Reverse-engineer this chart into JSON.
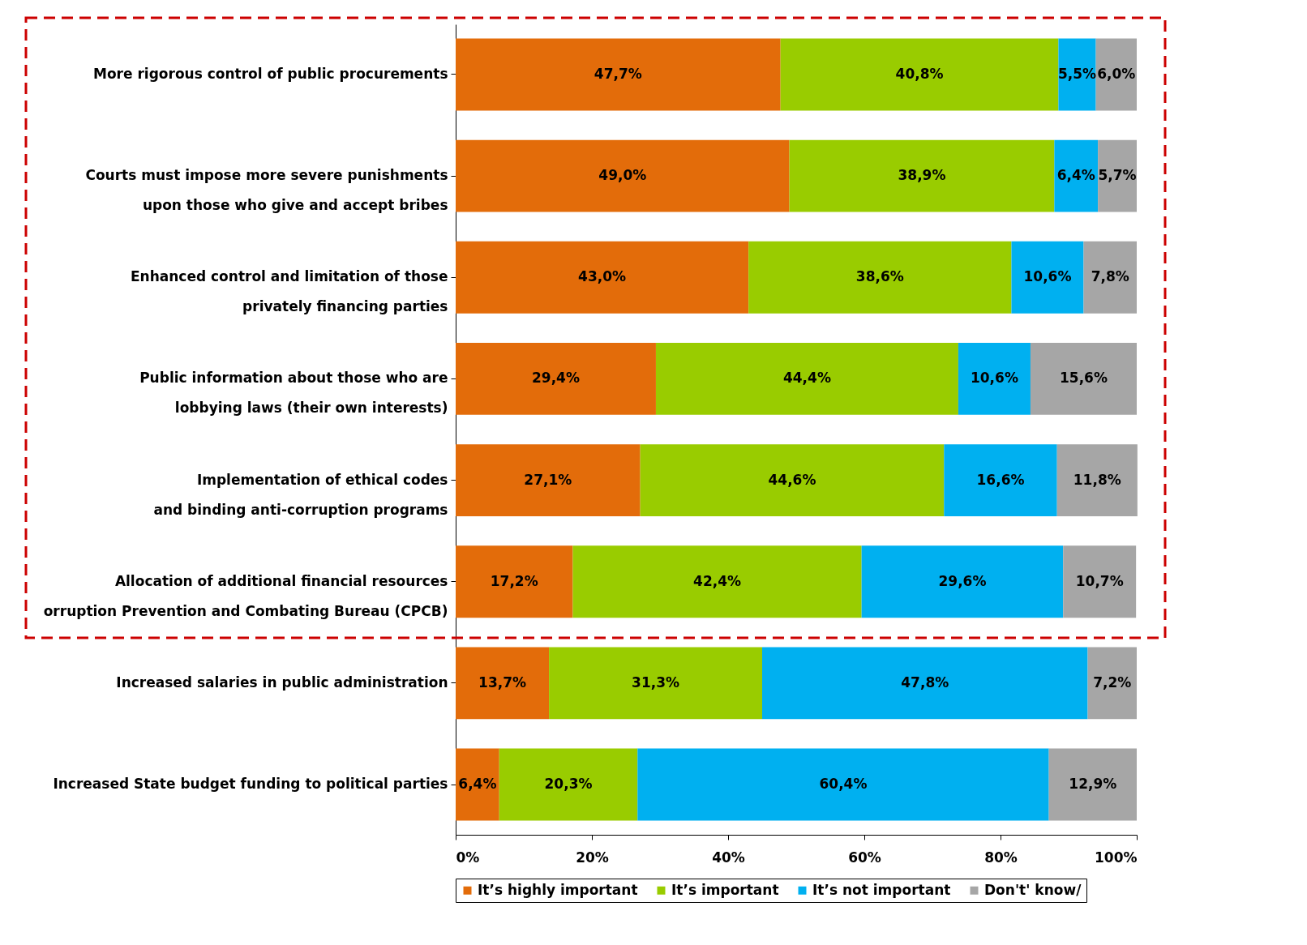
{
  "chart_data": {
    "type": "bar",
    "orientation": "horizontal",
    "stacked": true,
    "categories": [
      "More rigorous control of public procurements",
      "Courts must impose more severe punishments\nupon those who give and accept bribes",
      "Enhanced control and limitation of those\nprivately financing parties",
      "Public information about those who are\nlobbying laws (their own interests)",
      "Implementation of ethical codes\nand binding anti-corruption programs",
      "Allocation of additional financial resources\norruption Prevention and Combating Bureau (CPCB)",
      "Increased salaries in public administration",
      "Increased State budget funding to political parties"
    ],
    "series": [
      {
        "name": "It’s highly important",
        "color": "#e36c0a",
        "values": [
          47.7,
          49.0,
          43.0,
          29.4,
          27.1,
          17.2,
          13.7,
          6.4
        ],
        "value_labels": [
          "47,7%",
          "49,0%",
          "43,0%",
          "29,4%",
          "27,1%",
          "17,2%",
          "13,7%",
          "6,4%"
        ]
      },
      {
        "name": "It’s important",
        "color": "#99cc00",
        "values": [
          40.8,
          38.9,
          38.6,
          44.4,
          44.6,
          42.4,
          31.3,
          20.3
        ],
        "value_labels": [
          "40,8%",
          "38,9%",
          "38,6%",
          "44,4%",
          "44,6%",
          "42,4%",
          "31,3%",
          "20,3%"
        ]
      },
      {
        "name": "It’s not important",
        "color": "#00b0f0",
        "values": [
          5.5,
          6.4,
          10.6,
          10.6,
          16.6,
          29.6,
          47.8,
          60.4
        ],
        "value_labels": [
          "5,5%",
          "6,4%",
          "10,6%",
          "10,6%",
          "16,6%",
          "29,6%",
          "47,8%",
          "60,4%"
        ]
      },
      {
        "name": "Don't' know/",
        "color": "#a6a6a6",
        "values": [
          6.0,
          5.7,
          7.8,
          15.6,
          11.8,
          10.7,
          7.2,
          12.9
        ],
        "value_labels": [
          "6,0%",
          "5,7%",
          "7,8%",
          "15,6%",
          "11,8%",
          "10,7%",
          "7,2%",
          "12,9%"
        ]
      }
    ],
    "xlim": [
      0,
      100
    ],
    "xticks": [
      {
        "value": 0,
        "label": "0%"
      },
      {
        "value": 20,
        "label": "20%"
      },
      {
        "value": 40,
        "label": "40%"
      },
      {
        "value": 60,
        "label": "60%"
      },
      {
        "value": 80,
        "label": "80%"
      },
      {
        "value": 100,
        "label": "100%"
      }
    ],
    "grid": false,
    "legend": "bottom"
  }
}
